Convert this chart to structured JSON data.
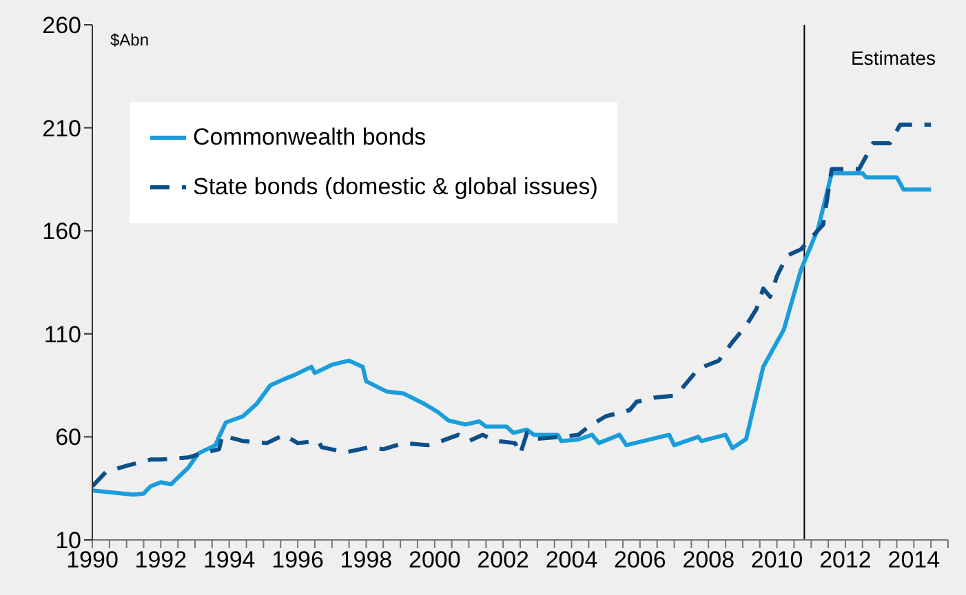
{
  "chart_data": {
    "type": "line",
    "ylabel": "$Abn",
    "xlim": [
      1990,
      2015
    ],
    "ylim": [
      10,
      260
    ],
    "yticks": [
      10,
      60,
      110,
      160,
      210,
      260
    ],
    "xticks": [
      1990,
      {
        "value": 1990.5,
        "label": null
      },
      {
        "value": 1991,
        "label": null
      },
      {
        "value": 1991.5,
        "label": null
      },
      1992,
      {
        "value": 1992.5,
        "label": null
      },
      {
        "value": 1993,
        "label": null
      },
      {
        "value": 1993.5,
        "label": null
      },
      1994,
      {
        "value": 1994.5,
        "label": null
      },
      {
        "value": 1995,
        "label": null
      },
      {
        "value": 1995.5,
        "label": null
      },
      1996,
      {
        "value": 1996.5,
        "label": null
      },
      {
        "value": 1997,
        "label": null
      },
      {
        "value": 1997.5,
        "label": null
      },
      1998,
      {
        "value": 1998.5,
        "label": null
      },
      {
        "value": 1999,
        "label": null
      },
      {
        "value": 1999.5,
        "label": null
      },
      2000,
      {
        "value": 2000.5,
        "label": null
      },
      {
        "value": 2001,
        "label": null
      },
      {
        "value": 2001.5,
        "label": null
      },
      2002,
      {
        "value": 2002.5,
        "label": null
      },
      {
        "value": 2003,
        "label": null
      },
      {
        "value": 2003.5,
        "label": null
      },
      2004,
      {
        "value": 2004.5,
        "label": null
      },
      {
        "value": 2005,
        "label": null
      },
      {
        "value": 2005.5,
        "label": null
      },
      2006,
      {
        "value": 2006.5,
        "label": null
      },
      {
        "value": 2007,
        "label": null
      },
      {
        "value": 2007.5,
        "label": null
      },
      2008,
      {
        "value": 2008.5,
        "label": null
      },
      {
        "value": 2009,
        "label": null
      },
      {
        "value": 2009.5,
        "label": null
      },
      2010,
      {
        "value": 2010.5,
        "label": null
      },
      {
        "value": 2011,
        "label": null
      },
      {
        "value": 2011.5,
        "label": null
      },
      2012,
      {
        "value": 2012.5,
        "label": null
      },
      {
        "value": 2013,
        "label": null
      },
      {
        "value": 2013.5,
        "label": null
      },
      2014,
      {
        "value": 2014.5,
        "label": null
      },
      {
        "value": 2015,
        "label": null
      }
    ],
    "grid": false,
    "legend": "top left",
    "marker": "none",
    "series": [
      {
        "name": "Commonwealth bonds",
        "color": "#1a9ddb",
        "line_style": "solid",
        "x": [
          1990,
          1991.2,
          1991.5,
          1991.7,
          1992,
          1992.3,
          1992.8,
          1993.1,
          1993.6,
          1993.7,
          1993.9,
          1994.4,
          1994.8,
          1995.2,
          1995.6,
          1995.9,
          1996.4,
          1996.5,
          1997,
          1997.5,
          1997.9,
          1998,
          1998.6,
          1999.1,
          1999.7,
          2000.1,
          2000.4,
          2000.9,
          2001.3,
          2001.5,
          2002.1,
          2002.3,
          2002.7,
          2002.9,
          2003.6,
          2003.7,
          2004.2,
          2004.6,
          2004.8,
          2005.4,
          2005.6,
          2006.1,
          2006.85,
          2007,
          2007.7,
          2007.8,
          2008.5,
          2008.7,
          2009.1,
          2009.6,
          2010.2,
          2010.7,
          2011.2,
          2011.6,
          2012.5,
          2012.6,
          2013.5,
          2013.7,
          2014.5
        ],
        "values": [
          34,
          32,
          32.5,
          36,
          38,
          37,
          45,
          52,
          56,
          60,
          67,
          70,
          76,
          85,
          88,
          90,
          94,
          91,
          95,
          97,
          94,
          87,
          82,
          81,
          76,
          72,
          68,
          66,
          67.5,
          65,
          65,
          62,
          63.5,
          61,
          61,
          58,
          58.7,
          61,
          57,
          61,
          56,
          58,
          61,
          56,
          60,
          58,
          61,
          54.5,
          59,
          94,
          112,
          141,
          161,
          188,
          188,
          186,
          186,
          180,
          180
        ]
      },
      {
        "name": "State bonds (domestic & global issues)",
        "color": "#0d4f88",
        "line_style": "dashed",
        "x": [
          1990,
          1990.4,
          1991,
          1991.7,
          1992,
          1992.8,
          1993.2,
          1993.7,
          1993.8,
          1994.4,
          1995.1,
          1995.6,
          1996,
          1996.6,
          1996.7,
          1997.4,
          1998.1,
          1998.5,
          1999.1,
          1999.8,
          2000.2,
          2000.7,
          2001,
          2001.4,
          2001.8,
          2002.35,
          2002.5,
          2002.7,
          2002.95,
          2003.7,
          2004.2,
          2004.5,
          2005,
          2005.7,
          2005.9,
          2006.4,
          2007,
          2007.2,
          2007.7,
          2008.3,
          2008.7,
          2009.1,
          2009.4,
          2009.6,
          2009.8,
          2010,
          2010.3,
          2010.7,
          2011.35,
          2011.6,
          2012.4,
          2012.6,
          2012.8,
          2013.3,
          2013.6,
          2014.5
        ],
        "values": [
          36,
          43,
          46,
          49,
          49,
          50,
          52,
          54,
          60.7,
          58,
          57,
          61,
          57,
          58,
          55,
          52.5,
          55,
          54,
          57,
          56,
          58,
          61,
          58,
          61,
          58,
          57,
          51.7,
          62,
          59,
          60,
          61,
          65,
          70,
          73,
          77,
          79,
          80,
          83,
          93,
          97,
          106,
          114,
          122,
          132,
          128,
          138,
          148,
          151,
          163,
          190,
          190,
          196,
          202.5,
          202.5,
          211.5,
          211.5
        ]
      }
    ],
    "ref_lines": [
      {
        "axis": "x",
        "value": 2010.8,
        "label": null,
        "color": "#000000",
        "line_style": "solid"
      }
    ],
    "annotations": [
      "Estimates"
    ]
  }
}
